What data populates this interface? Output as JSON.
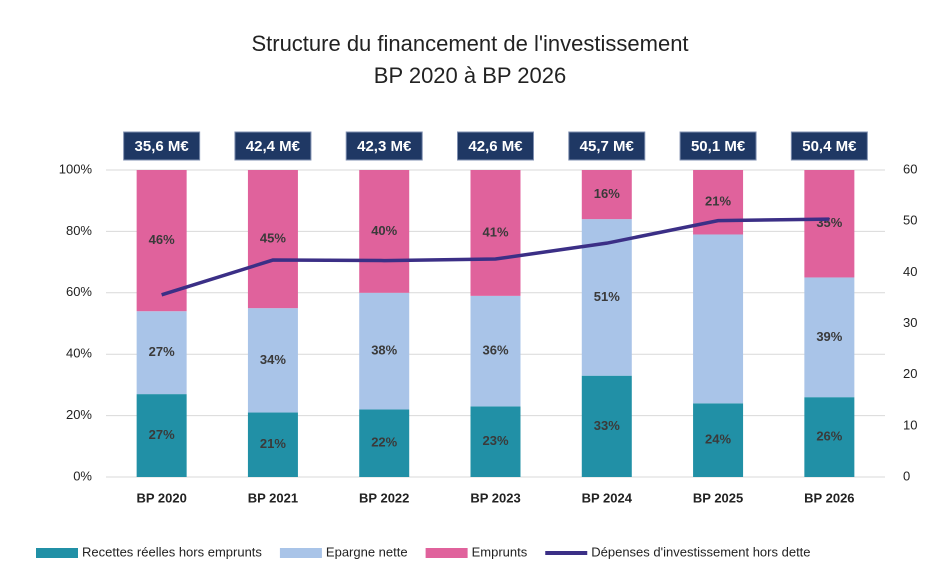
{
  "chart_data": {
    "type": "bar",
    "stacked": true,
    "title": "Structure du financement de l'investissement",
    "subtitle": "BP 2020 à BP 2026",
    "categories": [
      "BP 2020",
      "BP 2021",
      "BP 2022",
      "BP 2023",
      "BP 2024",
      "BP 2025",
      "BP 2026"
    ],
    "series": [
      {
        "name": "Recettes réelles hors emprunts",
        "color": "#2190a6",
        "values": [
          27,
          21,
          22,
          23,
          33,
          24,
          26
        ],
        "value_labels": [
          "27%",
          "21%",
          "22%",
          "23%",
          "33%",
          "24%",
          "26%"
        ]
      },
      {
        "name": "Epargne nette",
        "color": "#a9c4e8",
        "values": [
          27,
          34,
          38,
          36,
          51,
          55,
          39
        ],
        "value_labels": [
          "27%",
          "34%",
          "38%",
          "36%",
          "51%",
          null,
          "39%"
        ]
      },
      {
        "name": "Emprunts",
        "color": "#e0629c",
        "values": [
          46,
          45,
          40,
          41,
          16,
          21,
          35
        ],
        "value_labels": [
          "46%",
          "45%",
          "40%",
          "41%",
          "16%",
          "21%",
          "35%"
        ]
      },
      {
        "name": "Dépenses d'investissement hors dette",
        "color": "#3b2f86",
        "type": "line",
        "axis": "y2",
        "values": [
          35.6,
          42.4,
          42.3,
          42.6,
          45.7,
          50.1,
          50.4
        ],
        "value_labels": [
          "35,6 M€",
          "42,4 M€",
          "42,3 M€",
          "42,6 M€",
          "45,7 M€",
          "50,1 M€",
          "50,4 M€"
        ]
      }
    ],
    "ylim": [
      0,
      100
    ],
    "yticks": [
      {
        "value": 0,
        "label": "0%"
      },
      {
        "value": 20,
        "label": "20%"
      },
      {
        "value": 40,
        "label": "40%"
      },
      {
        "value": 60,
        "label": "60%"
      },
      {
        "value": 80,
        "label": "80%"
      },
      {
        "value": 100,
        "label": "100%"
      }
    ],
    "y2lim": [
      0,
      60
    ],
    "y2ticks": [
      0,
      10,
      20,
      30,
      40,
      50,
      60
    ],
    "grid": true,
    "legend": "bottom"
  }
}
